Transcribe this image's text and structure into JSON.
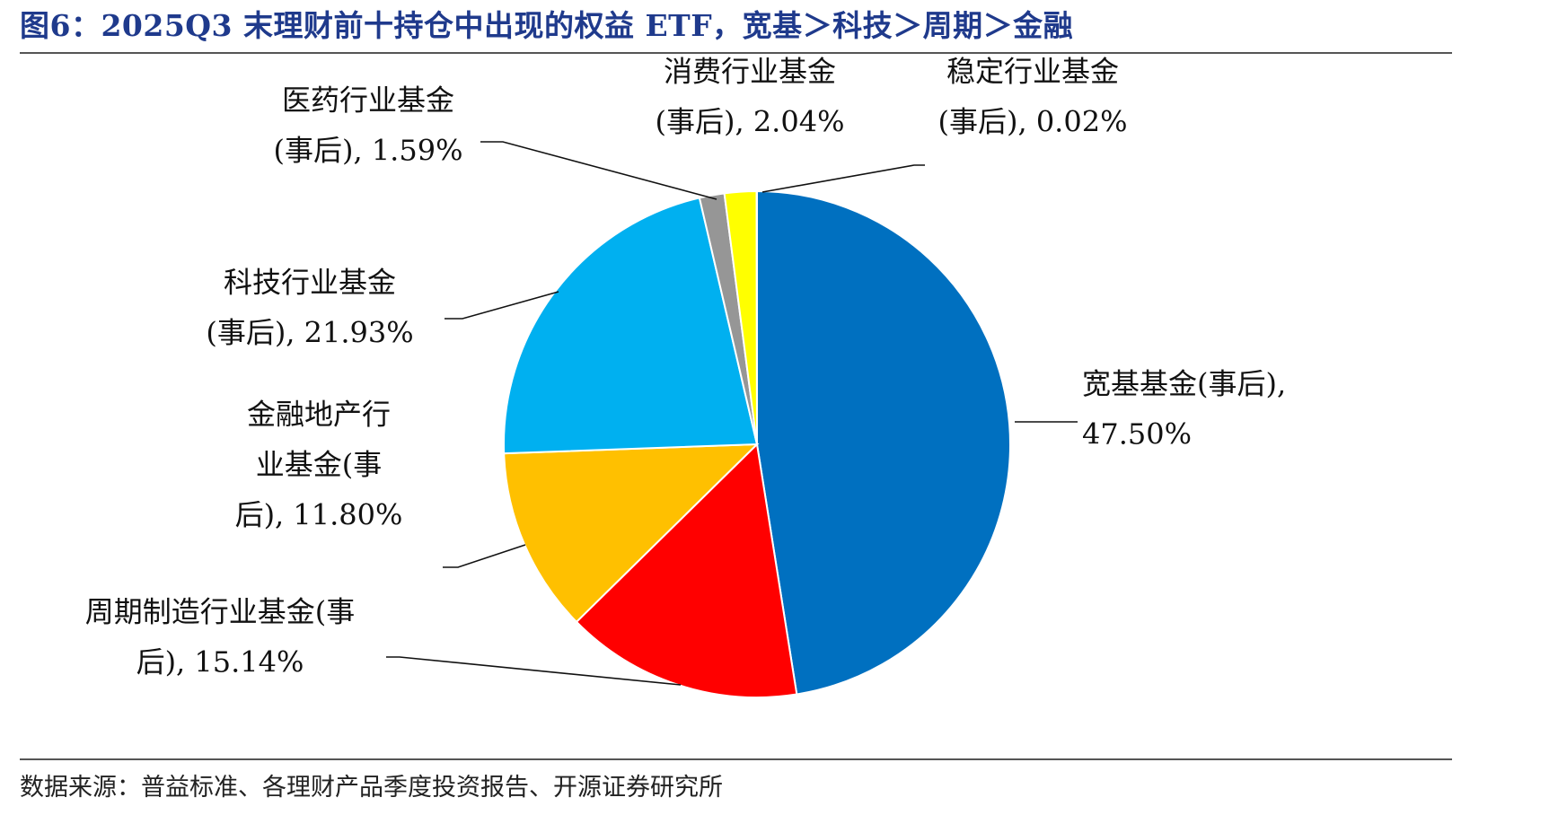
{
  "header": {
    "title": "图6：2025Q3 末理财前十持仓中出现的权益 ETF，宽基＞科技＞周期＞金融"
  },
  "footer": {
    "source": "数据来源：普益标准、各理财产品季度投资报告、开源证券研究所"
  },
  "chart_data": {
    "type": "pie",
    "title": "",
    "start_angle_deg": 0,
    "direction": "clockwise",
    "slices": [
      {
        "name": "宽基基金(事后)",
        "value": 47.5,
        "color": "#0070C0",
        "label_lines": [
          "宽基基金(事后),",
          "47.50%"
        ]
      },
      {
        "name": "周期制造行业基金(事后)",
        "value": 15.14,
        "color": "#FF0000",
        "label_lines": [
          "周期制造行业基金(事",
          "后), 15.14%"
        ]
      },
      {
        "name": "金融地产行业基金(事后)",
        "value": 11.8,
        "color": "#FFC000",
        "label_lines": [
          "金融地产行",
          "业基金(事",
          "后), 11.80%"
        ]
      },
      {
        "name": "科技行业基金(事后)",
        "value": 21.93,
        "color": "#00B0F0",
        "label_lines": [
          "科技行业基金",
          "(事后), 21.93%"
        ]
      },
      {
        "name": "医药行业基金(事后)",
        "value": 1.59,
        "color": "#969696",
        "label_lines": [
          "医药行业基金",
          "(事后), 1.59%"
        ]
      },
      {
        "name": "消费行业基金(事后)",
        "value": 2.04,
        "color": "#FFFF00",
        "label_lines": [
          "消费行业基金",
          "(事后), 2.04%"
        ]
      },
      {
        "name": "稳定行业基金(事后)",
        "value": 0.02,
        "color": "#00B050",
        "label_lines": [
          "稳定行业基金",
          "(事后), 0.02%"
        ]
      }
    ]
  }
}
